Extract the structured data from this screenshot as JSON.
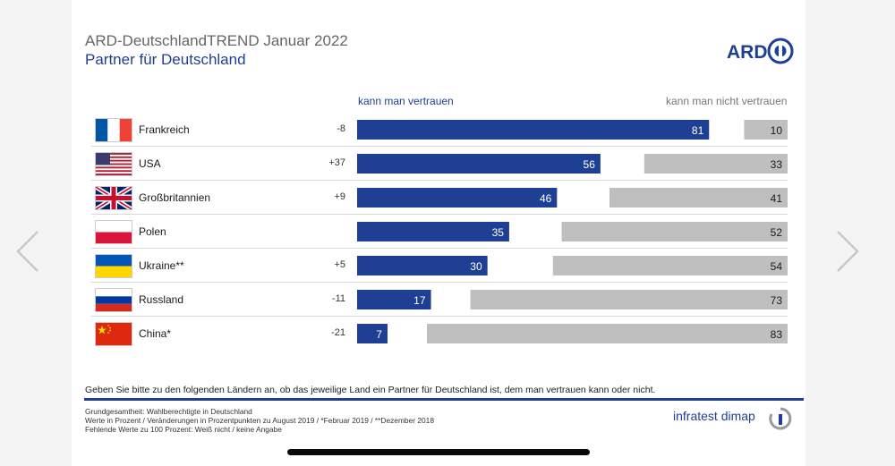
{
  "slide": {
    "title": "ARD-DeutschlandTREND Januar 2022",
    "subtitle": "Partner für Deutschland",
    "logo_text": "ARD",
    "question": "Geben Sie bitte zu den folgenden Ländern an, ob das jeweilige Land ein Partner für Deutschland ist, dem man vertrauen kann oder nicht.",
    "footnotes": [
      "Grundgesamtheit:  Wahlberechtigte  in Deutschland",
      "Werte in Prozent / Veränderungen  in Prozentpunkten zu August 2019 / *Februar 2019 / **Dezember  2018",
      "Fehlende Werte zu 100 Prozent: Weiß nicht / keine Angabe"
    ],
    "source_logo": "infratest dimap"
  },
  "colors": {
    "trust": "#1e3f93",
    "distrust": "#bfbfbf",
    "title_grey": "#666666"
  },
  "chart_data": {
    "type": "bar",
    "orientation": "horizontal",
    "stacking": "diverging",
    "title": "Partner für Deutschland",
    "categories": [
      "Frankreich",
      "USA",
      "Großbritannien",
      "Polen",
      "Ukraine**",
      "Russland",
      "China*"
    ],
    "changes": [
      "-8",
      "+37",
      "+9",
      "",
      "+5",
      "-11",
      "-21"
    ],
    "flags": [
      "flag-france",
      "flag-usa",
      "flag-uk",
      "flag-poland",
      "flag-ukraine",
      "flag-russia",
      "flag-china"
    ],
    "series": [
      {
        "name": "kann man vertrauen",
        "values": [
          81,
          56,
          46,
          35,
          30,
          17,
          7
        ]
      },
      {
        "name": "kann man nicht vertrauen",
        "values": [
          10,
          33,
          41,
          52,
          54,
          73,
          83
        ]
      }
    ],
    "xlim": [
      0,
      100
    ],
    "unit": "Prozent"
  }
}
